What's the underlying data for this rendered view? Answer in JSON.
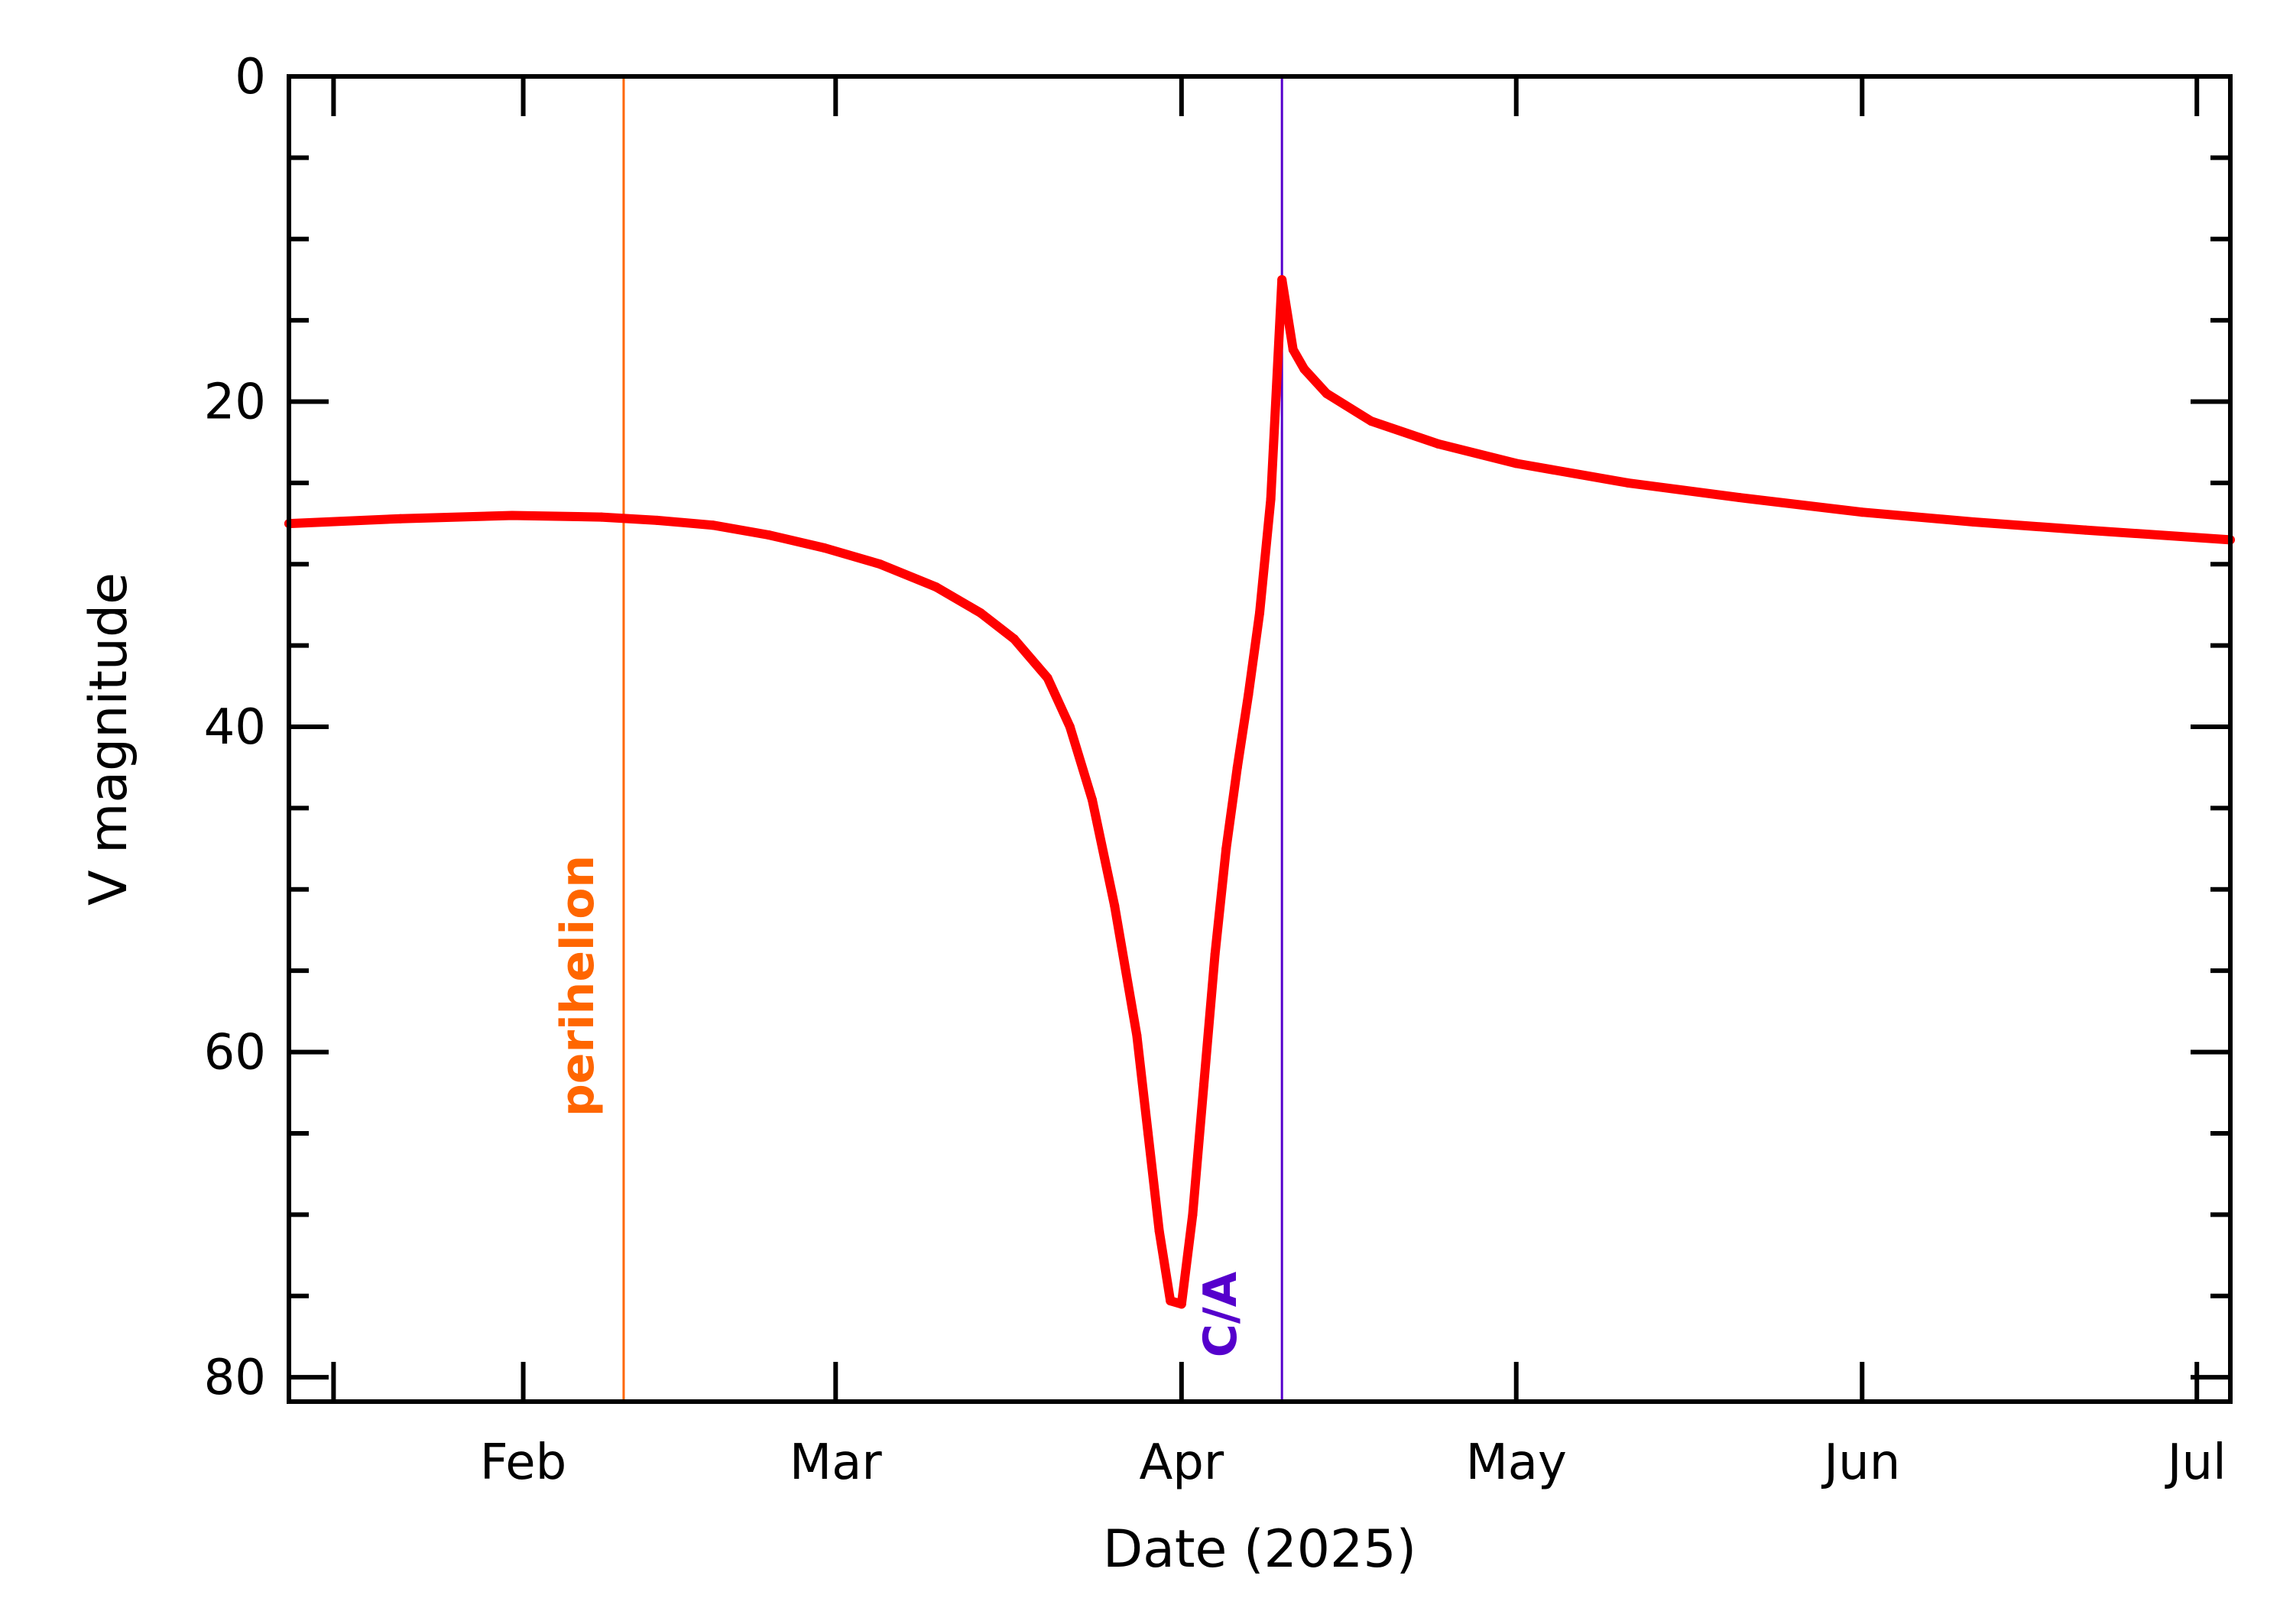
{
  "chart_data": {
    "type": "line",
    "title": "",
    "xlabel": "Date (2025)",
    "ylabel": "V magnitude",
    "x_range": [
      "2025-01-11",
      "2025-07-04"
    ],
    "ylim": [
      0,
      81.5
    ],
    "y_inverted": true,
    "grid": false,
    "x_ticks": [
      {
        "label": "Feb",
        "date": "2025-02-01"
      },
      {
        "label": "Mar",
        "date": "2025-03-01"
      },
      {
        "label": "Apr",
        "date": "2025-04-01"
      },
      {
        "label": "May",
        "date": "2025-05-01"
      },
      {
        "label": "Jun",
        "date": "2025-06-01"
      },
      {
        "label": "Jul",
        "date": "2025-07-01"
      }
    ],
    "y_ticks": [
      {
        "label": "0",
        "value": 0
      },
      {
        "label": "20",
        "value": 20
      },
      {
        "label": "40",
        "value": 40
      },
      {
        "label": "60",
        "value": 60
      },
      {
        "label": "80",
        "value": 80
      }
    ],
    "series": [
      {
        "color": "#ff0000",
        "points": [
          [
            "2025-01-11",
            27.5
          ],
          [
            "2025-01-21",
            27.2
          ],
          [
            "2025-01-31",
            27.0
          ],
          [
            "2025-02-08",
            27.1
          ],
          [
            "2025-02-13",
            27.3
          ],
          [
            "2025-02-18",
            27.6
          ],
          [
            "2025-02-23",
            28.2
          ],
          [
            "2025-02-28",
            29.0
          ],
          [
            "2025-03-05",
            30.0
          ],
          [
            "2025-03-10",
            31.4
          ],
          [
            "2025-03-14",
            33.0
          ],
          [
            "2025-03-17",
            34.6
          ],
          [
            "2025-03-20",
            37.0
          ],
          [
            "2025-03-22",
            40.0
          ],
          [
            "2025-03-24",
            44.5
          ],
          [
            "2025-03-26",
            51.0
          ],
          [
            "2025-03-28",
            59.0
          ],
          [
            "2025-03-29",
            65.0
          ],
          [
            "2025-03-30",
            71.0
          ],
          [
            "2025-03-31",
            75.3
          ],
          [
            "2025-04-01",
            75.5
          ],
          [
            "2025-04-02",
            70.0
          ],
          [
            "2025-04-03",
            62.0
          ],
          [
            "2025-04-04",
            54.0
          ],
          [
            "2025-04-05",
            47.5
          ],
          [
            "2025-04-06",
            42.5
          ],
          [
            "2025-04-07",
            38.0
          ],
          [
            "2025-04-08",
            33.0
          ],
          [
            "2025-04-09",
            26.0
          ],
          [
            "2025-04-10",
            12.5
          ],
          [
            "2025-04-11",
            16.8
          ],
          [
            "2025-04-12",
            18.0
          ],
          [
            "2025-04-14",
            19.5
          ],
          [
            "2025-04-18",
            21.2
          ],
          [
            "2025-04-24",
            22.6
          ],
          [
            "2025-05-01",
            23.8
          ],
          [
            "2025-05-11",
            25.0
          ],
          [
            "2025-05-21",
            25.9
          ],
          [
            "2025-06-01",
            26.8
          ],
          [
            "2025-06-11",
            27.4
          ],
          [
            "2025-06-21",
            27.9
          ],
          [
            "2025-07-04",
            28.5
          ]
        ]
      }
    ],
    "annotations": [
      {
        "label": "perihelion",
        "date": "2025-02-10",
        "color": "#ff6600"
      },
      {
        "label": "C/A",
        "date": "2025-04-10",
        "color": "#5500cc"
      }
    ]
  }
}
